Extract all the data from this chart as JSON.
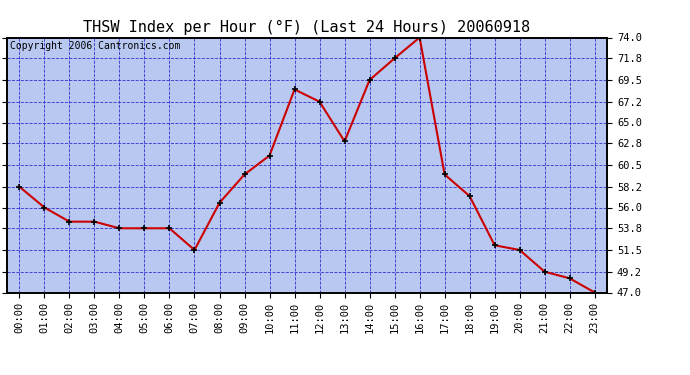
{
  "title": "THSW Index per Hour (°F) (Last 24 Hours) 20060918",
  "copyright": "Copyright 2006 Cantronics.com",
  "hours": [
    "00:00",
    "01:00",
    "02:00",
    "03:00",
    "04:00",
    "05:00",
    "06:00",
    "07:00",
    "08:00",
    "09:00",
    "10:00",
    "11:00",
    "12:00",
    "13:00",
    "14:00",
    "15:00",
    "16:00",
    "17:00",
    "18:00",
    "19:00",
    "20:00",
    "21:00",
    "22:00",
    "23:00"
  ],
  "values": [
    58.2,
    56.0,
    54.5,
    54.5,
    53.8,
    53.8,
    53.8,
    51.5,
    56.5,
    59.5,
    61.5,
    68.5,
    67.2,
    63.0,
    69.5,
    71.8,
    74.0,
    59.5,
    57.2,
    52.0,
    51.5,
    49.2,
    48.5,
    47.0
  ],
  "ylim": [
    47.0,
    74.0
  ],
  "yticks": [
    47.0,
    49.2,
    51.5,
    53.8,
    56.0,
    58.2,
    60.5,
    62.8,
    65.0,
    67.2,
    69.5,
    71.8,
    74.0
  ],
  "line_color": "#cc0000",
  "marker_color": "#000000",
  "bg_color": "#b8c8f0",
  "grid_color": "#2222cc",
  "border_color": "#000000",
  "title_color": "#000000",
  "copyright_color": "#000000",
  "title_fontsize": 11,
  "copyright_fontsize": 7,
  "tick_fontsize": 7.5
}
